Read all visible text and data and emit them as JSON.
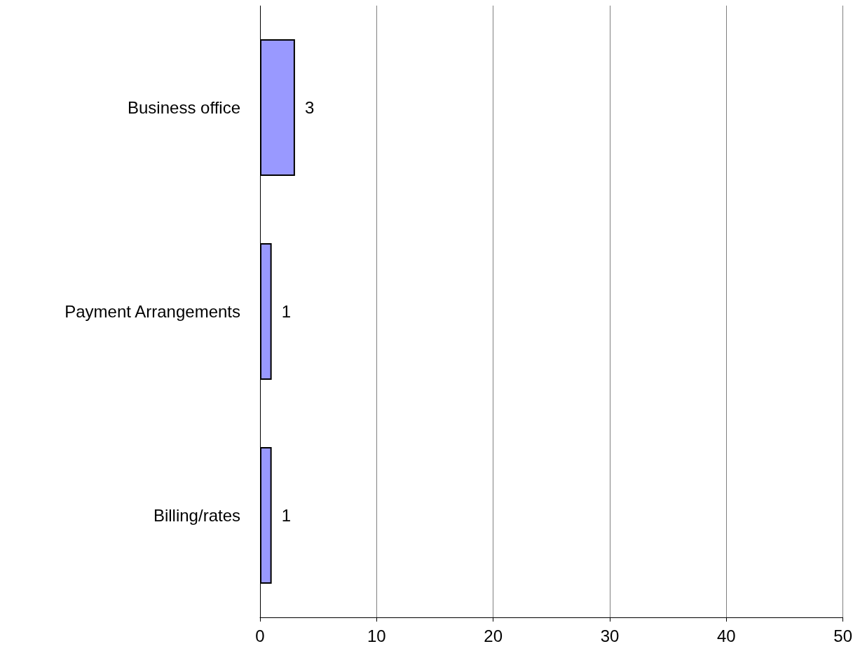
{
  "chart_data": {
    "type": "bar",
    "orientation": "horizontal",
    "categories": [
      "Business office",
      "Payment Arrangements",
      "Billing/rates"
    ],
    "values": [
      3,
      1,
      1
    ],
    "color": "#9999ff",
    "xlim": [
      0,
      50
    ],
    "xticks": [
      0,
      10,
      20,
      30,
      40,
      50
    ],
    "grid": "x",
    "data_labels": true
  }
}
